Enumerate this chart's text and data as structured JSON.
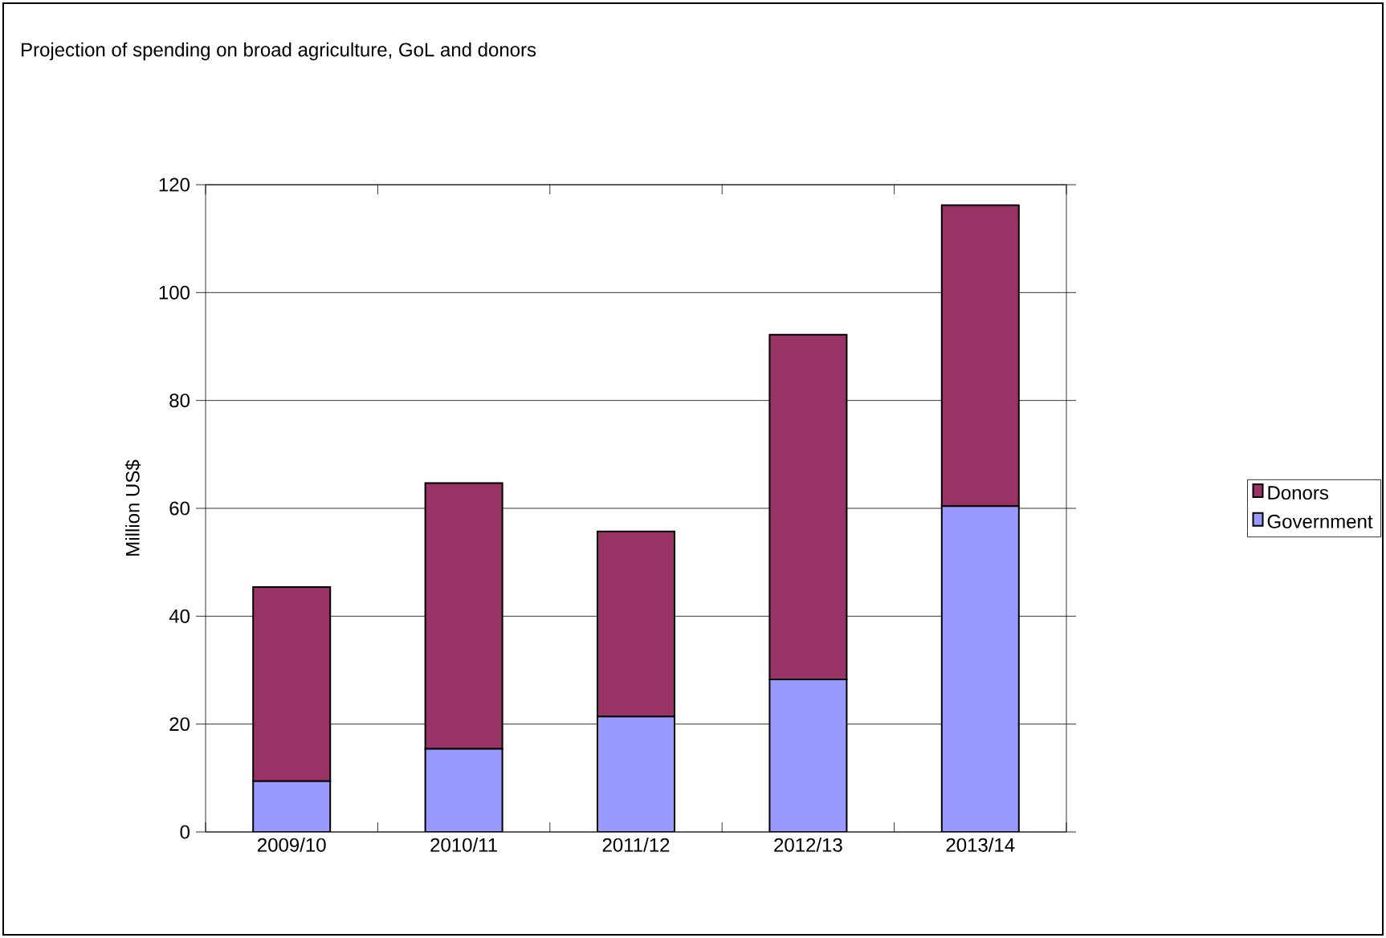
{
  "chart_data": {
    "type": "bar",
    "stacked": true,
    "title": "Projection of spending on broad agriculture, GoL and donors",
    "ylabel": "Million US$",
    "categories": [
      "2009/10",
      "2010/11",
      "2011/12",
      "2012/13",
      "2013/14"
    ],
    "series": [
      {
        "name": "Government",
        "color": "#9999ff",
        "values": [
          9.4,
          15.4,
          21.4,
          28.3,
          60.4
        ]
      },
      {
        "name": "Donors",
        "color": "#993366",
        "values": [
          36.0,
          49.3,
          34.3,
          63.9,
          55.8
        ]
      }
    ],
    "ylim": [
      0,
      120
    ],
    "yticks": [
      0,
      20,
      40,
      60,
      80,
      100,
      120
    ],
    "grid": "y",
    "legend": "right"
  }
}
